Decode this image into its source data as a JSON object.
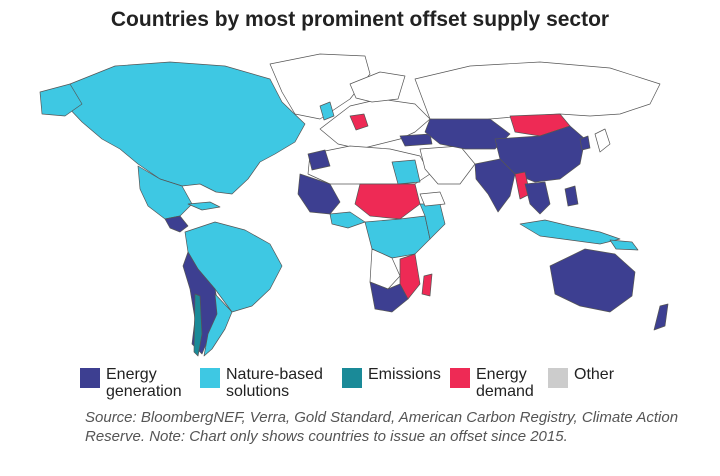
{
  "title": "Countries by most prominent offset supply sector",
  "legend": [
    {
      "label": "Energy\ngeneration",
      "color": "#3d3f91"
    },
    {
      "label": "Nature-based\nsolutions",
      "color": "#3ec8e3"
    },
    {
      "label": "Emissions",
      "color": "#1a8a98"
    },
    {
      "label": "Energy\ndemand",
      "color": "#ee2a55"
    },
    {
      "label": "Other",
      "color": "#cccccc"
    }
  ],
  "source": "Source: BloombergNEF, Verra, Gold Standard, American Carbon Registry, Climate Action Reserve. Note: Chart only shows countries to issue an offset since 2015.",
  "map_colors": {
    "none": "#ffffff",
    "border": "#555555"
  }
}
